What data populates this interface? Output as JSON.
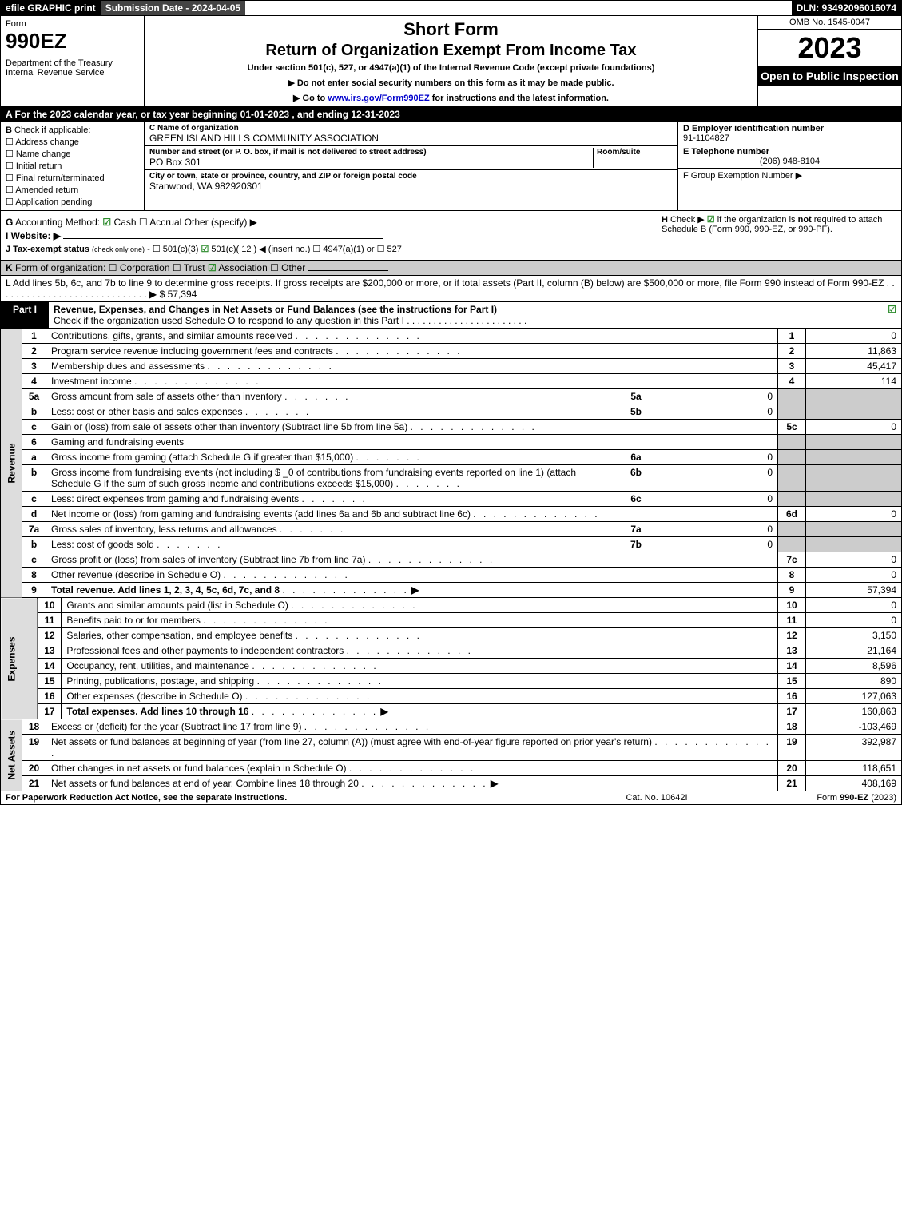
{
  "topbar": {
    "efile": "efile GRAPHIC print",
    "submission": "Submission Date - 2024-04-05",
    "dln": "DLN: 93492096016074"
  },
  "header": {
    "form_label": "Form",
    "form_number": "990EZ",
    "dept": "Department of the Treasury\nInternal Revenue Service",
    "short": "Short Form",
    "return_title": "Return of Organization Exempt From Income Tax",
    "under": "Under section 501(c), 527, or 4947(a)(1) of the Internal Revenue Code (except private foundations)",
    "instr1": "▶ Do not enter social security numbers on this form as it may be made public.",
    "instr2_pre": "▶ Go to ",
    "instr2_link": "www.irs.gov/Form990EZ",
    "instr2_post": " for instructions and the latest information.",
    "omb": "OMB No. 1545-0047",
    "year": "2023",
    "open": "Open to Public Inspection"
  },
  "sectionA": "A  For the 2023 calendar year, or tax year beginning 01-01-2023 , and ending 12-31-2023",
  "B": {
    "hd": "B",
    "label": "Check if applicable:",
    "items": [
      "Address change",
      "Name change",
      "Initial return",
      "Final return/terminated",
      "Amended return",
      "Application pending"
    ]
  },
  "C": {
    "name_lbl": "C Name of organization",
    "name": "GREEN ISLAND HILLS COMMUNITY ASSOCIATION",
    "street_lbl": "Number and street (or P. O. box, if mail is not delivered to street address)",
    "room_lbl": "Room/suite",
    "street": "PO Box 301",
    "city_lbl": "City or town, state or province, country, and ZIP or foreign postal code",
    "city": "Stanwood, WA  982920301"
  },
  "DE": {
    "d_lbl": "D Employer identification number",
    "d_val": "91-1104827",
    "e_lbl": "E Telephone number",
    "e_val": "(206) 948-8104",
    "f_lbl": "F Group Exemption Number   ▶"
  },
  "G": "G Accounting Method:   ☑ Cash   ☐ Accrual   Other (specify) ▶ ____________",
  "H": "H   Check ▶  ☑  if the organization is not required to attach Schedule B (Form 990, 990-EZ, or 990-PF).",
  "I": "I Website: ▶ ____________________________________________",
  "J": "J Tax-exempt status (check only one) - ☐ 501(c)(3)  ☑ 501(c)( 12 ) ◀ (insert no.)  ☐ 4947(a)(1) or  ☐ 527",
  "K": "K Form of organization:   ☐ Corporation   ☐ Trust   ☑ Association   ☐ Other  __________",
  "L": "L Add lines 5b, 6c, and 7b to line 9 to determine gross receipts. If gross receipts are $200,000 or more, or if total assets (Part II, column (B) below) are $500,000 or more, file Form 990 instead of Form 990-EZ  . . . . . . . . . . . . . . . . . . . . . . . . . . . . .  ▶ $ 57,394",
  "partI": {
    "label": "Part I",
    "title": "Revenue, Expenses, and Changes in Net Assets or Fund Balances (see the instructions for Part I)",
    "check": "Check if the organization used Schedule O to respond to any question in this Part I . . . . . . . . . . . . . . . . . . . . . . .",
    "checked": "☑"
  },
  "sidelabels": {
    "rev": "Revenue",
    "exp": "Expenses",
    "net": "Net Assets"
  },
  "rows": [
    {
      "n": "1",
      "d": "Contributions, gifts, grants, and similar amounts received",
      "c": "1",
      "v": "0"
    },
    {
      "n": "2",
      "d": "Program service revenue including government fees and contracts",
      "c": "2",
      "v": "11,863"
    },
    {
      "n": "3",
      "d": "Membership dues and assessments",
      "c": "3",
      "v": "45,417"
    },
    {
      "n": "4",
      "d": "Investment income",
      "c": "4",
      "v": "114"
    },
    {
      "n": "5a",
      "d": "Gross amount from sale of assets other than inventory",
      "sub": "5a",
      "sv": "0"
    },
    {
      "n": "b",
      "d": "Less: cost or other basis and sales expenses",
      "sub": "5b",
      "sv": "0"
    },
    {
      "n": "c",
      "d": "Gain or (loss) from sale of assets other than inventory (Subtract line 5b from line 5a)",
      "c": "5c",
      "v": "0"
    },
    {
      "n": "6",
      "d": "Gaming and fundraising events",
      "gray": true
    },
    {
      "n": "a",
      "d": "Gross income from gaming (attach Schedule G if greater than $15,000)",
      "sub": "6a",
      "sv": "0"
    },
    {
      "n": "b",
      "d": "Gross income from fundraising events (not including $ _0   of contributions from fundraising events reported on line 1) (attach Schedule G if the sum of such gross income and contributions exceeds $15,000)",
      "sub": "6b",
      "sv": "0"
    },
    {
      "n": "c",
      "d": "Less: direct expenses from gaming and fundraising events",
      "sub": "6c",
      "sv": "0"
    },
    {
      "n": "d",
      "d": "Net income or (loss) from gaming and fundraising events (add lines 6a and 6b and subtract line 6c)",
      "c": "6d",
      "v": "0"
    },
    {
      "n": "7a",
      "d": "Gross sales of inventory, less returns and allowances",
      "sub": "7a",
      "sv": "0"
    },
    {
      "n": "b",
      "d": "Less: cost of goods sold",
      "sub": "7b",
      "sv": "0"
    },
    {
      "n": "c",
      "d": "Gross profit or (loss) from sales of inventory (Subtract line 7b from line 7a)",
      "c": "7c",
      "v": "0"
    },
    {
      "n": "8",
      "d": "Other revenue (describe in Schedule O)",
      "c": "8",
      "v": "0"
    },
    {
      "n": "9",
      "d": "Total revenue. Add lines 1, 2, 3, 4, 5c, 6d, 7c, and 8",
      "c": "9",
      "v": "57,394",
      "bold": true,
      "arrow": true
    }
  ],
  "exp_rows": [
    {
      "n": "10",
      "d": "Grants and similar amounts paid (list in Schedule O)",
      "c": "10",
      "v": "0"
    },
    {
      "n": "11",
      "d": "Benefits paid to or for members",
      "c": "11",
      "v": "0"
    },
    {
      "n": "12",
      "d": "Salaries, other compensation, and employee benefits",
      "c": "12",
      "v": "3,150"
    },
    {
      "n": "13",
      "d": "Professional fees and other payments to independent contractors",
      "c": "13",
      "v": "21,164"
    },
    {
      "n": "14",
      "d": "Occupancy, rent, utilities, and maintenance",
      "c": "14",
      "v": "8,596"
    },
    {
      "n": "15",
      "d": "Printing, publications, postage, and shipping",
      "c": "15",
      "v": "890"
    },
    {
      "n": "16",
      "d": "Other expenses (describe in Schedule O)",
      "c": "16",
      "v": "127,063"
    },
    {
      "n": "17",
      "d": "Total expenses. Add lines 10 through 16",
      "c": "17",
      "v": "160,863",
      "bold": true,
      "arrow": true
    }
  ],
  "net_rows": [
    {
      "n": "18",
      "d": "Excess or (deficit) for the year (Subtract line 17 from line 9)",
      "c": "18",
      "v": "-103,469"
    },
    {
      "n": "19",
      "d": "Net assets or fund balances at beginning of year (from line 27, column (A)) (must agree with end-of-year figure reported on prior year's return)",
      "c": "19",
      "v": "392,987"
    },
    {
      "n": "20",
      "d": "Other changes in net assets or fund balances (explain in Schedule O)",
      "c": "20",
      "v": "118,651"
    },
    {
      "n": "21",
      "d": "Net assets or fund balances at end of year. Combine lines 18 through 20",
      "c": "21",
      "v": "408,169",
      "arrow": true
    }
  ],
  "footer": {
    "l": "For Paperwork Reduction Act Notice, see the separate instructions.",
    "m": "Cat. No. 10642I",
    "r_pre": "Form ",
    "r_bold": "990-EZ",
    "r_post": " (2023)"
  }
}
